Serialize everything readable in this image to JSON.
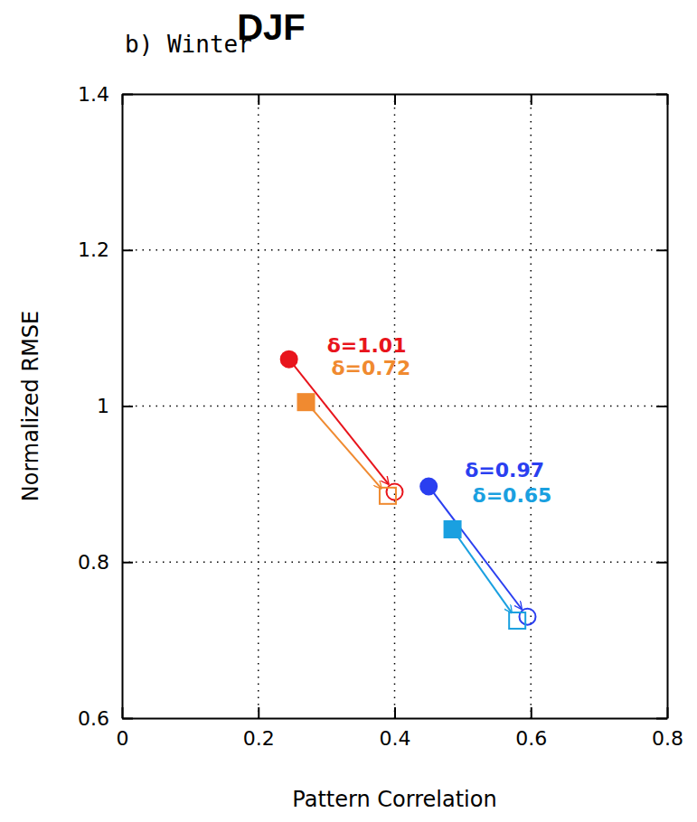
{
  "chart_data": {
    "type": "scatter",
    "title": "DJF",
    "subtitle": "b) Winter",
    "x_label": "Pattern Correlation",
    "y_label": "Normalized RMSE",
    "xlim": [
      0,
      0.8
    ],
    "xticks": [
      0,
      0.2,
      0.4,
      0.6,
      0.8
    ],
    "ylim": [
      0.6,
      1.4
    ],
    "yticks": [
      0.6,
      0.8,
      1,
      1.2,
      1.4
    ],
    "grid": true,
    "series": [
      {
        "color": "#e8141c",
        "marker": "circle",
        "line_style": "arrow",
        "annotation": "δ=1.01",
        "x": [
          0.245,
          0.4
        ],
        "values": [
          1.06,
          0.89
        ]
      },
      {
        "color": "#f08a30",
        "marker": "square",
        "line_style": "arrow",
        "annotation": "δ=0.72",
        "x": [
          0.27,
          0.39
        ],
        "values": [
          1.005,
          0.885
        ]
      },
      {
        "color": "#2a3ff0",
        "marker": "circle",
        "line_style": "arrow",
        "annotation": "δ=0.97",
        "x": [
          0.45,
          0.595
        ],
        "values": [
          0.897,
          0.73
        ]
      },
      {
        "color": "#1aa0e0",
        "marker": "square",
        "line_style": "arrow",
        "annotation": "δ=0.65",
        "x": [
          0.485,
          0.58
        ],
        "values": [
          0.842,
          0.725
        ]
      }
    ]
  }
}
